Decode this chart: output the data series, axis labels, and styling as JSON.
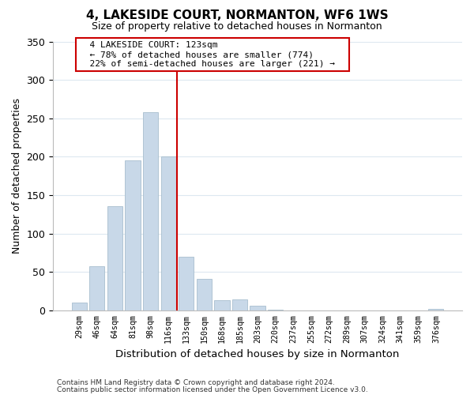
{
  "title": "4, LAKESIDE COURT, NORMANTON, WF6 1WS",
  "subtitle": "Size of property relative to detached houses in Normanton",
  "xlabel": "Distribution of detached houses by size in Normanton",
  "ylabel": "Number of detached properties",
  "bar_labels": [
    "29sqm",
    "46sqm",
    "64sqm",
    "81sqm",
    "98sqm",
    "116sqm",
    "133sqm",
    "150sqm",
    "168sqm",
    "185sqm",
    "203sqm",
    "220sqm",
    "237sqm",
    "255sqm",
    "272sqm",
    "289sqm",
    "307sqm",
    "324sqm",
    "341sqm",
    "359sqm",
    "376sqm"
  ],
  "bar_values": [
    10,
    57,
    136,
    195,
    258,
    200,
    70,
    41,
    13,
    14,
    6,
    1,
    0,
    0,
    0,
    0,
    0,
    0,
    0,
    0,
    2
  ],
  "bar_color": "#c8d8e8",
  "bar_edge_color": "#a8bece",
  "vline_color": "#cc0000",
  "ylim": [
    0,
    350
  ],
  "yticks": [
    0,
    50,
    100,
    150,
    200,
    250,
    300,
    350
  ],
  "annotation_title": "4 LAKESIDE COURT: 123sqm",
  "annotation_line1": "← 78% of detached houses are smaller (774)",
  "annotation_line2": "22% of semi-detached houses are larger (221) →",
  "annotation_box_color": "#ffffff",
  "annotation_box_edge_color": "#cc0000",
  "footer_line1": "Contains HM Land Registry data © Crown copyright and database right 2024.",
  "footer_line2": "Contains public sector information licensed under the Open Government Licence v3.0.",
  "background_color": "#ffffff",
  "grid_color": "#dde8f0"
}
